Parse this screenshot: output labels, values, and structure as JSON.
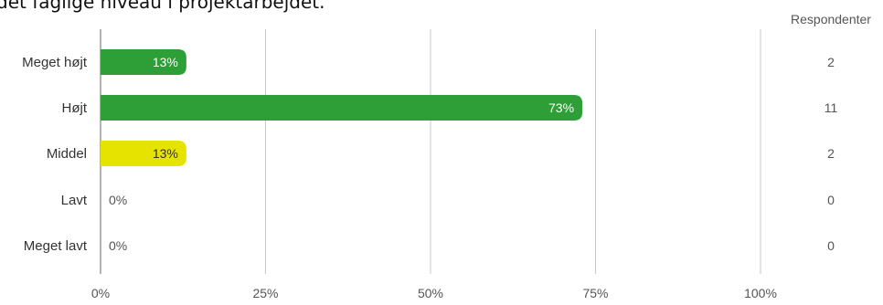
{
  "title": "det faglige niveau i projektarbejdet.",
  "chart_data": {
    "type": "bar",
    "orientation": "horizontal",
    "count_header": "Respondenter",
    "categories": [
      "Meget højt",
      "Højt",
      "Middel",
      "Lavt",
      "Meget lavt"
    ],
    "values": [
      13,
      73,
      13,
      0,
      0
    ],
    "value_labels": [
      "13%",
      "73%",
      "13%",
      "0%",
      "0%"
    ],
    "counts": [
      "2",
      "11",
      "2",
      "0",
      "0"
    ],
    "xlim": [
      0,
      100
    ],
    "xticks": [
      0,
      25,
      50,
      75,
      100
    ],
    "xtick_labels": [
      "0%",
      "25%",
      "50%",
      "75%",
      "100%"
    ],
    "grid": true,
    "bar_colors": [
      "#2e9e37",
      "#2e9e37",
      "#e6e300",
      "#2e9e37",
      "#2e9e37"
    ],
    "label_colors": [
      "#ffffff",
      "#ffffff",
      "#333333",
      "#555555",
      "#555555"
    ]
  }
}
